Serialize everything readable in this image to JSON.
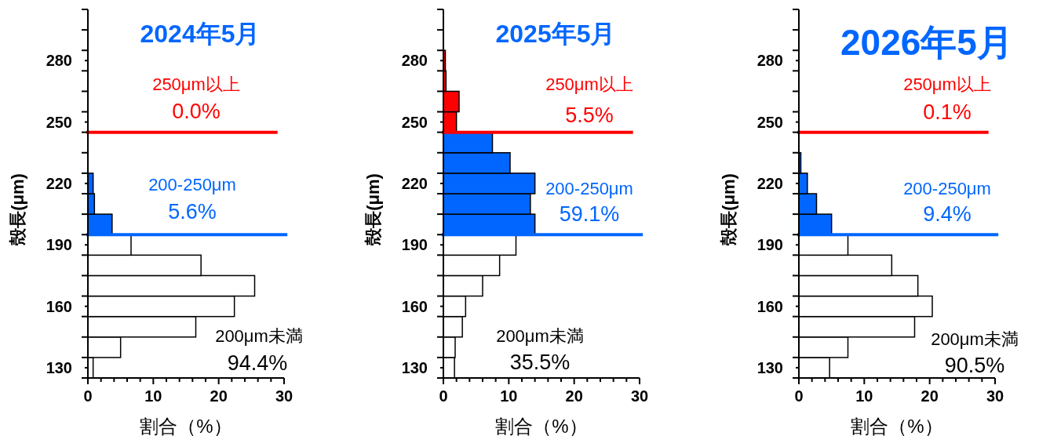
{
  "chart_data": [
    {
      "type": "histogram",
      "orientation": "horizontal",
      "title": "2024年5月",
      "xlabel": "割合（%）",
      "ylabel": "殻長(μm)",
      "bins": [
        125,
        135,
        145,
        155,
        165,
        175,
        185,
        195,
        205,
        215,
        225,
        235,
        245,
        255,
        265,
        275,
        285,
        295
      ],
      "values": [
        0.8,
        5.0,
        16.5,
        22.4,
        25.5,
        17.3,
        6.6,
        3.7,
        1.0,
        0.8,
        0,
        0,
        0,
        0,
        0,
        0,
        0
      ],
      "colors": [
        "#ffffff",
        "#ffffff",
        "#ffffff",
        "#ffffff",
        "#ffffff",
        "#ffffff",
        "#ffffff",
        "#0066ff",
        "#0066ff",
        "#0066ff",
        "#0066ff",
        "#0066ff",
        "#ff0000",
        "#ff0000",
        "#ff0000",
        "#ff0000",
        "#ff0000"
      ],
      "xlim": [
        0,
        30
      ],
      "xticks": [
        0,
        {
          "value": 2,
          "label": null
        },
        {
          "value": 4,
          "label": null
        },
        {
          "value": 6,
          "label": null
        },
        {
          "value": 8,
          "label": null
        },
        10,
        {
          "value": 12,
          "label": null
        },
        {
          "value": 14,
          "label": null
        },
        {
          "value": 16,
          "label": null
        },
        {
          "value": 18,
          "label": null
        },
        20,
        {
          "value": 22,
          "label": null
        },
        {
          "value": 24,
          "label": null
        },
        {
          "value": 26,
          "label": null
        },
        {
          "value": 28,
          "label": null
        },
        30
      ],
      "ylim": [
        125,
        305
      ],
      "yticks": [
        {
          "value": 125,
          "label": null
        },
        130,
        {
          "value": 135,
          "label": null
        },
        {
          "value": 145,
          "label": null
        },
        {
          "value": 155,
          "label": null
        },
        160,
        {
          "value": 165,
          "label": null
        },
        {
          "value": 175,
          "label": null
        },
        {
          "value": 185,
          "label": null
        },
        190,
        {
          "value": 195,
          "label": null
        },
        {
          "value": 205,
          "label": null
        },
        {
          "value": 215,
          "label": null
        },
        220,
        {
          "value": 225,
          "label": null
        },
        {
          "value": 235,
          "label": null
        },
        {
          "value": 245,
          "label": null
        },
        250,
        {
          "value": 255,
          "label": null
        },
        {
          "value": 265,
          "label": null
        },
        {
          "value": 275,
          "label": null
        },
        280,
        {
          "value": 285,
          "label": null
        },
        {
          "value": 295,
          "label": null
        },
        {
          "value": 305,
          "label": null
        }
      ],
      "ref_lines": [
        {
          "axis": "y",
          "value": 245,
          "color": "#ff0000"
        },
        {
          "axis": "y",
          "value": 195,
          "color": "#0066ff"
        }
      ],
      "annotations": [
        "250μm以上",
        "0.0%",
        "200-250μm",
        "5.6%",
        "200μm未満",
        "94.4%"
      ]
    },
    {
      "type": "histogram",
      "orientation": "horizontal",
      "title": "2025年5月",
      "xlabel": "割合（%）",
      "ylabel": "殻長(μm)",
      "bins": [
        125,
        135,
        145,
        155,
        165,
        175,
        185,
        195,
        205,
        215,
        225,
        235,
        245,
        255,
        265,
        275,
        285,
        295
      ],
      "values": [
        1.7,
        1.8,
        2.9,
        3.4,
        6.0,
        8.6,
        11.1,
        14.0,
        13.3,
        14.0,
        10.2,
        7.5,
        2.0,
        2.4,
        0.4,
        0.3,
        0
      ],
      "colors": [
        "#ffffff",
        "#ffffff",
        "#ffffff",
        "#ffffff",
        "#ffffff",
        "#ffffff",
        "#ffffff",
        "#0066ff",
        "#0066ff",
        "#0066ff",
        "#0066ff",
        "#0066ff",
        "#ff0000",
        "#ff0000",
        "#ff0000",
        "#ff0000",
        "#ff0000"
      ],
      "xlim": [
        0,
        30
      ],
      "xticks": [
        0,
        {
          "value": 2,
          "label": null
        },
        {
          "value": 4,
          "label": null
        },
        {
          "value": 6,
          "label": null
        },
        {
          "value": 8,
          "label": null
        },
        10,
        {
          "value": 12,
          "label": null
        },
        {
          "value": 14,
          "label": null
        },
        {
          "value": 16,
          "label": null
        },
        {
          "value": 18,
          "label": null
        },
        20,
        {
          "value": 22,
          "label": null
        },
        {
          "value": 24,
          "label": null
        },
        {
          "value": 26,
          "label": null
        },
        {
          "value": 28,
          "label": null
        },
        30
      ],
      "ylim": [
        125,
        305
      ],
      "yticks": [
        {
          "value": 125,
          "label": null
        },
        130,
        {
          "value": 135,
          "label": null
        },
        {
          "value": 145,
          "label": null
        },
        {
          "value": 155,
          "label": null
        },
        160,
        {
          "value": 165,
          "label": null
        },
        {
          "value": 175,
          "label": null
        },
        {
          "value": 185,
          "label": null
        },
        190,
        {
          "value": 195,
          "label": null
        },
        {
          "value": 205,
          "label": null
        },
        {
          "value": 215,
          "label": null
        },
        220,
        {
          "value": 225,
          "label": null
        },
        {
          "value": 235,
          "label": null
        },
        {
          "value": 245,
          "label": null
        },
        250,
        {
          "value": 255,
          "label": null
        },
        {
          "value": 265,
          "label": null
        },
        {
          "value": 275,
          "label": null
        },
        280,
        {
          "value": 285,
          "label": null
        },
        {
          "value": 295,
          "label": null
        },
        {
          "value": 305,
          "label": null
        }
      ],
      "ref_lines": [
        {
          "axis": "y",
          "value": 245,
          "color": "#ff0000"
        },
        {
          "axis": "y",
          "value": 195,
          "color": "#0066ff"
        }
      ],
      "annotations": [
        "250μm以上",
        "5.5%",
        "200-250μm",
        "59.1%",
        "200μm未満",
        "35.5%"
      ]
    },
    {
      "type": "histogram",
      "orientation": "horizontal",
      "title": "2026年5月",
      "xlabel": "割合（%）",
      "ylabel": "殻長(μm)",
      "bins": [
        125,
        135,
        145,
        155,
        165,
        175,
        185,
        195,
        205,
        215,
        225,
        235,
        245,
        255,
        265,
        275,
        285,
        295
      ],
      "values": [
        4.7,
        7.5,
        17.7,
        20.4,
        18.2,
        14.2,
        7.5,
        5.0,
        2.7,
        1.3,
        0.3,
        0,
        0,
        0,
        0,
        0,
        0
      ],
      "colors": [
        "#ffffff",
        "#ffffff",
        "#ffffff",
        "#ffffff",
        "#ffffff",
        "#ffffff",
        "#ffffff",
        "#0066ff",
        "#0066ff",
        "#0066ff",
        "#0066ff",
        "#0066ff",
        "#ff0000",
        "#ff0000",
        "#ff0000",
        "#ff0000",
        "#ff0000"
      ],
      "xlim": [
        0,
        30
      ],
      "xticks": [
        0,
        {
          "value": 2,
          "label": null
        },
        {
          "value": 4,
          "label": null
        },
        {
          "value": 6,
          "label": null
        },
        {
          "value": 8,
          "label": null
        },
        10,
        {
          "value": 12,
          "label": null
        },
        {
          "value": 14,
          "label": null
        },
        {
          "value": 16,
          "label": null
        },
        {
          "value": 18,
          "label": null
        },
        20,
        {
          "value": 22,
          "label": null
        },
        {
          "value": 24,
          "label": null
        },
        {
          "value": 26,
          "label": null
        },
        {
          "value": 28,
          "label": null
        },
        30
      ],
      "ylim": [
        125,
        305
      ],
      "yticks": [
        {
          "value": 125,
          "label": null
        },
        130,
        {
          "value": 135,
          "label": null
        },
        {
          "value": 145,
          "label": null
        },
        {
          "value": 155,
          "label": null
        },
        160,
        {
          "value": 165,
          "label": null
        },
        {
          "value": 175,
          "label": null
        },
        {
          "value": 185,
          "label": null
        },
        190,
        {
          "value": 195,
          "label": null
        },
        {
          "value": 205,
          "label": null
        },
        {
          "value": 215,
          "label": null
        },
        220,
        {
          "value": 225,
          "label": null
        },
        {
          "value": 235,
          "label": null
        },
        {
          "value": 245,
          "label": null
        },
        250,
        {
          "value": 255,
          "label": null
        },
        {
          "value": 265,
          "label": null
        },
        {
          "value": 275,
          "label": null
        },
        280,
        {
          "value": 285,
          "label": null
        },
        {
          "value": 295,
          "label": null
        },
        {
          "value": 305,
          "label": null
        }
      ],
      "ref_lines": [
        {
          "axis": "y",
          "value": 245,
          "color": "#ff0000"
        },
        {
          "axis": "y",
          "value": 195,
          "color": "#0066ff"
        }
      ],
      "annotations": [
        "250μm以上",
        "0.1%",
        "200-250μm",
        "9.4%",
        "200μm未満",
        "90.5%"
      ]
    }
  ]
}
